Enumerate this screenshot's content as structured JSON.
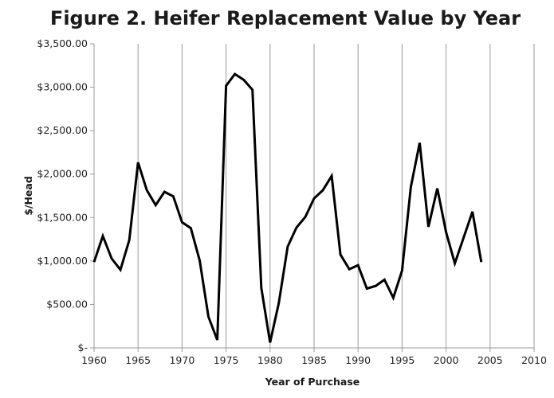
{
  "chart_data": {
    "type": "line",
    "title": "Figure 2. Heifer Replacement Value by Year",
    "xlabel": "Year of Purchase",
    "ylabel": "$/Head",
    "xlim": [
      1960,
      2010
    ],
    "ylim": [
      0,
      3500
    ],
    "x_ticks": [
      "1960",
      "1965",
      "1970",
      "1975",
      "1980",
      "1985",
      "1990",
      "1995",
      "2000",
      "2005",
      "2010"
    ],
    "y_ticks": [
      "$-",
      "$500.00",
      "$1,000.00",
      "$1,500.00",
      "$2,000.00",
      "$2,500.00",
      "$3,000.00",
      "$3,500.00"
    ],
    "grid": "vertical",
    "line_color": "#000000",
    "x": [
      1960,
      1961,
      1962,
      1963,
      1964,
      1965,
      1966,
      1967,
      1968,
      1969,
      1970,
      1971,
      1972,
      1973,
      1974,
      1975,
      1976,
      1977,
      1978,
      1979,
      1980,
      1981,
      1982,
      1983,
      1984,
      1985,
      1986,
      1987,
      1988,
      1989,
      1990,
      1991,
      1992,
      1993,
      1994,
      1995,
      1996,
      1997,
      1998,
      1999,
      2000,
      2001,
      2002,
      2003,
      2004
    ],
    "values": [
      988,
      1287,
      1027,
      899,
      1241,
      2134,
      1814,
      1643,
      1796,
      1744,
      1445,
      1378,
      1006,
      357,
      91,
      3015,
      3152,
      3085,
      2970,
      692,
      61,
      518,
      1165,
      1384,
      1506,
      1720,
      1814,
      1979,
      1073,
      905,
      951,
      683,
      713,
      784,
      576,
      890,
      1851,
      2360,
      1393,
      1835,
      1332,
      973,
      1271,
      1567,
      988
    ]
  }
}
